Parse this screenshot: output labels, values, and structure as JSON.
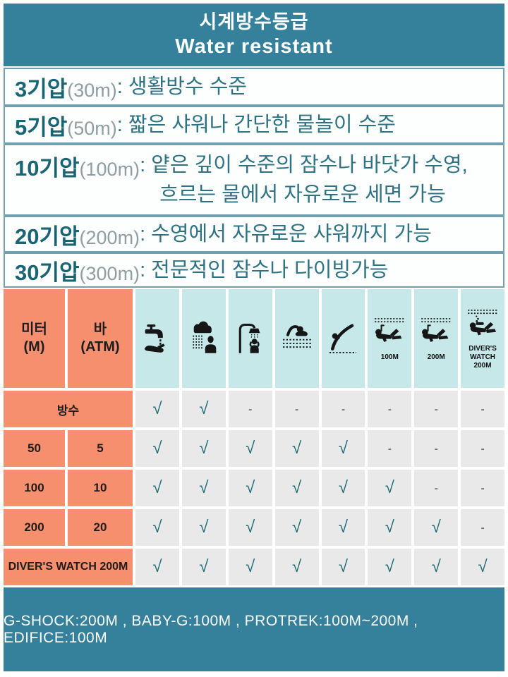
{
  "header": {
    "title_ko": "시계방수등급",
    "title_en": "Water resistant"
  },
  "ratings": [
    {
      "term": "3기압",
      "depth": "(30m)",
      "desc": ": 생활방수 수준"
    },
    {
      "term": "5기압",
      "depth": "(50m)",
      "desc": ": 짧은 샤워나 간단한 물놀이 수준"
    },
    {
      "term": "10기압",
      "depth": "(100m)",
      "desc": ": 얕은 깊이 수준의 잠수나 바닷가 수영,",
      "desc2": "흐르는 물에서 자유로운 세면 가능"
    },
    {
      "term": "20기압",
      "depth": "(200m)",
      "desc": ": 수영에서 자유로운 샤워까지 가능"
    },
    {
      "term": "30기압",
      "depth": "(300m)",
      "desc": ": 전문적인 잠수나 다이빙가능"
    }
  ],
  "table": {
    "col_headers": [
      {
        "line1": "미터",
        "line2": "(M)"
      },
      {
        "line1": "바",
        "line2": "(ATM)"
      }
    ],
    "icon_columns": [
      {
        "icon": "faucet-hand-icon",
        "label": ""
      },
      {
        "icon": "rain-person-icon",
        "label": ""
      },
      {
        "icon": "shower-person-icon",
        "label": ""
      },
      {
        "icon": "swimmer-icon",
        "label": ""
      },
      {
        "icon": "dive-jump-icon",
        "label": ""
      },
      {
        "icon": "snorkeler-icon",
        "label": "100M"
      },
      {
        "icon": "snorkeler-icon",
        "label": "200M"
      },
      {
        "icon": "scuba-diver-icon",
        "label": "DIVER'S WATCH 200M"
      }
    ],
    "rows": [
      {
        "label": "방수",
        "span": true,
        "checks": [
          "√",
          "√",
          "-",
          "-",
          "-",
          "-",
          "-",
          "-"
        ]
      },
      {
        "m": "50",
        "atm": "5",
        "span": false,
        "checks": [
          "√",
          "√",
          "√",
          "√",
          "√",
          "-",
          "-",
          "-"
        ]
      },
      {
        "m": "100",
        "atm": "10",
        "span": false,
        "checks": [
          "√",
          "√",
          "√",
          "√",
          "√",
          "√",
          "-",
          "-"
        ]
      },
      {
        "m": "200",
        "atm": "20",
        "span": false,
        "checks": [
          "√",
          "√",
          "√",
          "√",
          "√",
          "√",
          "√",
          "-"
        ]
      },
      {
        "label": "DIVER'S WATCH 200M",
        "span": true,
        "checks": [
          "√",
          "√",
          "√",
          "√",
          "√",
          "√",
          "√",
          "√"
        ]
      }
    ]
  },
  "footer": {
    "text": "G-SHOCK:200M  ,  BABY-G:100M  ,  PROTREK:100M~200M  ,  EDIFICE:100M"
  },
  "colors": {
    "teal": "#35819B",
    "orange": "#F68F6D",
    "light_blue": "#C6E8E9",
    "cell_gray": "#E9E9E9",
    "check_teal": "#1D6B72",
    "text_teal": "#2F7383",
    "term_teal": "#1A6574",
    "border_teal": "#71A0AE"
  }
}
